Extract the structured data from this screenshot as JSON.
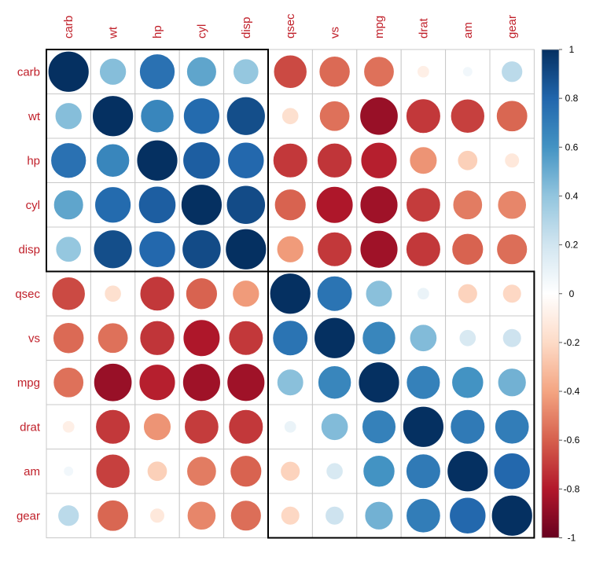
{
  "chart_data": {
    "type": "heatmap",
    "style": "correlation-circles",
    "variables": [
      "carb",
      "wt",
      "hp",
      "cyl",
      "disp",
      "qsec",
      "vs",
      "mpg",
      "drat",
      "am",
      "gear"
    ],
    "matrix": [
      [
        1,
        0.43,
        0.75,
        0.53,
        0.39,
        -0.66,
        -0.57,
        -0.55,
        -0.09,
        0.06,
        0.27
      ],
      [
        0.43,
        1,
        0.66,
        0.78,
        0.89,
        -0.17,
        -0.55,
        -0.87,
        -0.71,
        -0.69,
        -0.58
      ],
      [
        0.75,
        0.66,
        1,
        0.83,
        0.79,
        -0.71,
        -0.72,
        -0.78,
        -0.45,
        -0.24,
        -0.13
      ],
      [
        0.53,
        0.78,
        0.83,
        1,
        0.9,
        -0.59,
        -0.81,
        -0.85,
        -0.7,
        -0.52,
        -0.49
      ],
      [
        0.39,
        0.89,
        0.79,
        0.9,
        1,
        -0.43,
        -0.71,
        -0.85,
        -0.71,
        -0.59,
        -0.56
      ],
      [
        -0.66,
        -0.17,
        -0.71,
        -0.59,
        -0.43,
        1,
        0.74,
        0.42,
        0.09,
        -0.23,
        -0.21
      ],
      [
        -0.57,
        -0.55,
        -0.72,
        -0.81,
        -0.71,
        0.74,
        1,
        0.66,
        0.44,
        0.17,
        0.21
      ],
      [
        -0.55,
        -0.87,
        -0.78,
        -0.85,
        -0.85,
        0.42,
        0.66,
        1,
        0.68,
        0.6,
        0.48
      ],
      [
        -0.09,
        -0.71,
        -0.45,
        -0.7,
        -0.71,
        0.09,
        0.44,
        0.68,
        1,
        0.71,
        0.7
      ],
      [
        0.06,
        -0.69,
        -0.24,
        -0.52,
        -0.59,
        -0.23,
        0.17,
        0.6,
        0.71,
        1,
        0.79
      ],
      [
        0.27,
        -0.58,
        -0.13,
        -0.49,
        -0.56,
        -0.21,
        0.21,
        0.48,
        0.7,
        0.79,
        1
      ]
    ],
    "clusters": [
      {
        "start": 0,
        "end": 4
      },
      {
        "start": 5,
        "end": 10
      }
    ],
    "colorbar": {
      "range": [
        -1,
        1
      ],
      "ticks": [
        "1",
        "0.8",
        "0.6",
        "0.4",
        "0.2",
        "0",
        "-0.2",
        "-0.4",
        "-0.6",
        "-0.8",
        "-1"
      ],
      "colors": [
        "#67001f",
        "#b2182b",
        "#d6604d",
        "#f4a582",
        "#fddbc7",
        "#ffffff",
        "#d1e5f0",
        "#92c5de",
        "#4393c3",
        "#2166ac",
        "#053061"
      ]
    },
    "grid": true,
    "label_color": "#c0202a"
  }
}
